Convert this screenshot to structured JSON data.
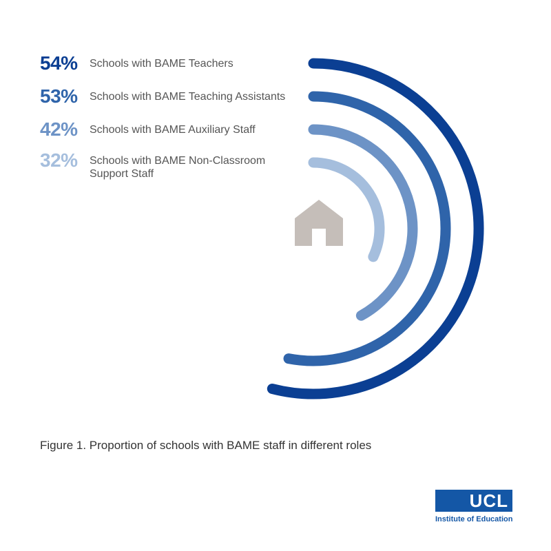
{
  "chart_data": {
    "type": "radial-bar",
    "title": "Figure 1. Proportion of schools with BAME staff in different roles",
    "categories": [
      "Schools with BAME Teachers",
      "Schools with BAME Teaching Assistants",
      "Schools with BAME Auxiliary Staff",
      "Schools with BAME Non-Classroom Support Staff"
    ],
    "values": [
      54,
      53,
      42,
      32
    ],
    "value_labels": [
      "54%",
      "53%",
      "42%",
      "32%"
    ],
    "colors": [
      "#0b3f93",
      "#2f64aa",
      "#6d93c6",
      "#a5bedd"
    ]
  },
  "logo": {
    "name": "UCL",
    "subtitle": "Institute of Education"
  }
}
